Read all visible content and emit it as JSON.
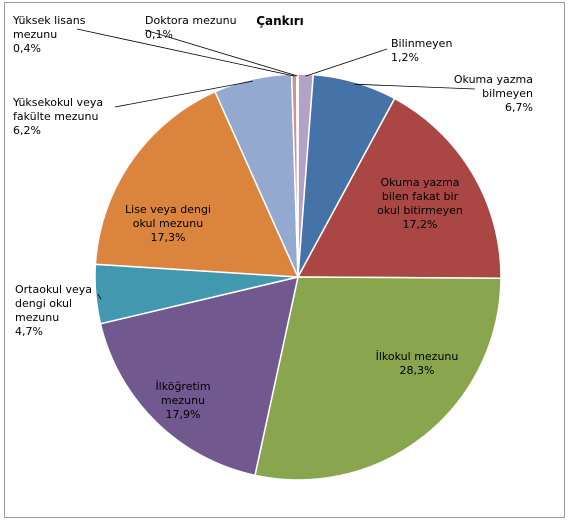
{
  "chart_data": {
    "type": "pie",
    "title": "Çankırı",
    "series": [
      {
        "label_lines": [
          "Bilinmeyen",
          "1,2%"
        ],
        "value": 1.2,
        "color": "#b3a2c7"
      },
      {
        "label_lines": [
          "Okuma yazma",
          "bilmeyen",
          "6,7%"
        ],
        "value": 6.7,
        "color": "#4572a7"
      },
      {
        "label_lines": [
          "Okuma yazma",
          "bilen fakat bir",
          "okul bitirmeyen",
          "17,2%"
        ],
        "value": 17.2,
        "color": "#aa4643"
      },
      {
        "label_lines": [
          "İlkokul mezunu",
          "28,3%"
        ],
        "value": 28.3,
        "color": "#89a54e"
      },
      {
        "label_lines": [
          "İlköğretim",
          "mezunu",
          "17,9%"
        ],
        "value": 17.9,
        "color": "#71588f"
      },
      {
        "label_lines": [
          "Ortaokul veya",
          "dengi okul",
          "mezunu",
          "4,7%"
        ],
        "value": 4.7,
        "color": "#4198af"
      },
      {
        "label_lines": [
          "Lise veya dengi",
          "okul mezunu",
          "17,3%"
        ],
        "value": 17.3,
        "color": "#db843d"
      },
      {
        "label_lines": [
          "Yüksekokul veya",
          "fakülte mezunu",
          "6,2%"
        ],
        "value": 6.2,
        "color": "#93a9cf"
      },
      {
        "label_lines": [
          "Yüksek lisans",
          "mezunu",
          "0,4%"
        ],
        "value": 0.4,
        "color": "#d19392"
      },
      {
        "label_lines": [
          "Doktora mezunu",
          "0,1%"
        ],
        "value": 0.1,
        "color": "#b9cd96"
      }
    ]
  }
}
